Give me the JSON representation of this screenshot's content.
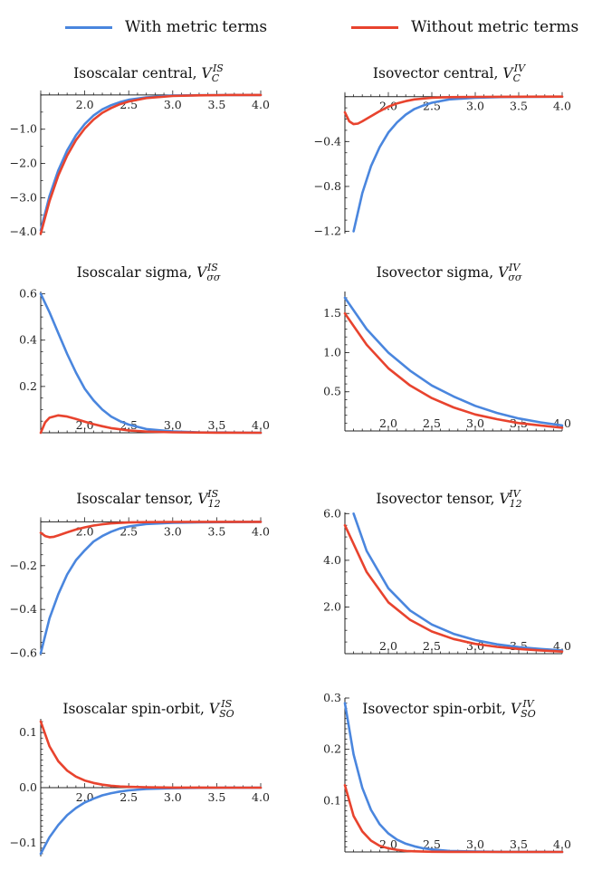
{
  "legend": {
    "with_label": "With metric terms",
    "without_label": "Without metric terms",
    "with_color": "#4a86de",
    "without_color": "#e8432e"
  },
  "chart_data": [
    {
      "type": "line",
      "title_text": "Isoscalar central, ",
      "symbol": "V",
      "sub": "C",
      "sup": "IS",
      "xlim": [
        1.5,
        4.0
      ],
      "ylim": [
        -4.1,
        0.05
      ],
      "xticks": [
        2.0,
        2.5,
        3.0,
        3.5,
        4.0
      ],
      "xtick_labels": [
        "2.0",
        "2.5",
        "3.0",
        "3.5",
        "4.0"
      ],
      "yticks": [
        -1.0,
        -2.0,
        -3.0,
        -4.0
      ],
      "ytick_labels": [
        "-1.0",
        "-2.0",
        "-3.0",
        "-4.0"
      ],
      "series": [
        {
          "name": "With metric terms",
          "x": [
            1.5,
            1.6,
            1.7,
            1.8,
            1.9,
            2.0,
            2.1,
            2.2,
            2.3,
            2.4,
            2.5,
            2.7,
            3.0,
            3.3,
            3.6,
            4.0
          ],
          "y": [
            -3.95,
            -2.95,
            -2.2,
            -1.62,
            -1.18,
            -0.85,
            -0.6,
            -0.42,
            -0.3,
            -0.21,
            -0.14,
            -0.07,
            -0.02,
            -0.008,
            -0.003,
            -0.001
          ]
        },
        {
          "name": "Without metric terms",
          "x": [
            1.5,
            1.6,
            1.7,
            1.8,
            1.9,
            2.0,
            2.1,
            2.2,
            2.3,
            2.4,
            2.5,
            2.7,
            3.0,
            3.3,
            3.6,
            4.0
          ],
          "y": [
            -4.05,
            -3.1,
            -2.35,
            -1.77,
            -1.32,
            -0.98,
            -0.72,
            -0.52,
            -0.38,
            -0.27,
            -0.19,
            -0.09,
            -0.03,
            -0.01,
            -0.004,
            -0.001
          ]
        }
      ]
    },
    {
      "type": "line",
      "title_text": "Isovector central, ",
      "symbol": "V",
      "sub": "C",
      "sup": "IV",
      "xlim": [
        1.5,
        4.0
      ],
      "ylim": [
        -1.22,
        0.03
      ],
      "xticks": [
        2.0,
        2.5,
        3.0,
        3.5,
        4.0
      ],
      "xtick_labels": [
        "2.0",
        "2.5",
        "3.0",
        "3.5",
        "4.0"
      ],
      "yticks": [
        -0.4,
        -0.8,
        -1.2
      ],
      "ytick_labels": [
        "-0.4",
        "-0.8",
        "-1.2"
      ],
      "series": [
        {
          "name": "With metric terms",
          "x": [
            1.6,
            1.7,
            1.8,
            1.9,
            2.0,
            2.1,
            2.2,
            2.3,
            2.4,
            2.5,
            2.7,
            3.0,
            3.3,
            3.6,
            4.0
          ],
          "y": [
            -1.2,
            -0.86,
            -0.62,
            -0.45,
            -0.32,
            -0.23,
            -0.16,
            -0.11,
            -0.08,
            -0.055,
            -0.025,
            -0.01,
            -0.004,
            -0.002,
            -0.001
          ]
        },
        {
          "name": "Without metric terms",
          "x": [
            1.5,
            1.55,
            1.6,
            1.65,
            1.7,
            1.8,
            1.9,
            2.0,
            2.1,
            2.2,
            2.3,
            2.5,
            2.7,
            3.0,
            3.5,
            4.0
          ],
          "y": [
            -0.14,
            -0.22,
            -0.245,
            -0.24,
            -0.22,
            -0.175,
            -0.13,
            -0.09,
            -0.06,
            -0.04,
            -0.025,
            -0.01,
            -0.005,
            -0.002,
            -0.0005,
            -0.0001
          ]
        }
      ]
    },
    {
      "type": "line",
      "title_text": "Isoscalar sigma, ",
      "symbol": "V",
      "sub": "σσ",
      "sup": "IS",
      "xlim": [
        1.5,
        4.0
      ],
      "ylim": [
        0.0,
        0.61
      ],
      "xticks": [
        2.0,
        2.5,
        3.0,
        3.5,
        4.0
      ],
      "xtick_labels": [
        "2.0",
        "2.5",
        "3.0",
        "3.5",
        "4.0"
      ],
      "yticks": [
        0.6,
        0.4,
        0.2
      ],
      "ytick_labels": [
        "0.6",
        "0.4",
        "0.2"
      ],
      "series": [
        {
          "name": "With metric terms",
          "x": [
            1.5,
            1.6,
            1.7,
            1.8,
            1.9,
            2.0,
            2.1,
            2.2,
            2.3,
            2.4,
            2.5,
            2.7,
            3.0,
            3.3,
            3.6,
            4.0
          ],
          "y": [
            0.6,
            0.52,
            0.43,
            0.34,
            0.26,
            0.19,
            0.14,
            0.1,
            0.07,
            0.05,
            0.035,
            0.016,
            0.006,
            0.002,
            0.001,
            0.0
          ]
        },
        {
          "name": "Without metric terms",
          "x": [
            1.5,
            1.55,
            1.6,
            1.7,
            1.8,
            1.9,
            2.0,
            2.1,
            2.2,
            2.3,
            2.5,
            2.7,
            3.0,
            3.5,
            4.0
          ],
          "y": [
            0.0,
            0.045,
            0.065,
            0.075,
            0.07,
            0.06,
            0.048,
            0.037,
            0.028,
            0.02,
            0.01,
            0.005,
            0.002,
            0.0005,
            0.0
          ]
        }
      ]
    },
    {
      "type": "line",
      "title_text": "Isovector sigma, ",
      "symbol": "V",
      "sub": "σσ",
      "sup": "IV",
      "xlim": [
        1.5,
        4.0
      ],
      "ylim": [
        0.0,
        1.78
      ],
      "xticks": [
        2.0,
        2.5,
        3.0,
        3.5,
        4.0
      ],
      "xtick_labels": [
        "2.0",
        "2.5",
        "3.0",
        "3.5",
        "4.0"
      ],
      "yticks": [
        1.5,
        1.0,
        0.5
      ],
      "ytick_labels": [
        "1.5",
        "1.0",
        "0.5"
      ],
      "series": [
        {
          "name": "With metric terms",
          "x": [
            1.5,
            1.75,
            2.0,
            2.25,
            2.5,
            2.75,
            3.0,
            3.25,
            3.5,
            3.75,
            4.0
          ],
          "y": [
            1.7,
            1.3,
            1.0,
            0.77,
            0.58,
            0.44,
            0.32,
            0.23,
            0.16,
            0.11,
            0.07
          ]
        },
        {
          "name": "Without metric terms",
          "x": [
            1.5,
            1.75,
            2.0,
            2.25,
            2.5,
            2.75,
            3.0,
            3.25,
            3.5,
            3.75,
            4.0
          ],
          "y": [
            1.5,
            1.1,
            0.8,
            0.58,
            0.42,
            0.3,
            0.21,
            0.15,
            0.1,
            0.07,
            0.04
          ]
        }
      ]
    },
    {
      "type": "line",
      "title_text": "Isoscalar tensor, ",
      "symbol": "V",
      "sub": "12",
      "sup": "IS",
      "xlim": [
        1.5,
        4.0
      ],
      "ylim": [
        -0.61,
        0.01
      ],
      "xticks": [
        2.0,
        2.5,
        3.0,
        3.5,
        4.0
      ],
      "xtick_labels": [
        "2.0",
        "2.5",
        "3.0",
        "3.5",
        "4.0"
      ],
      "yticks": [
        -0.2,
        -0.4,
        -0.6
      ],
      "ytick_labels": [
        "-0.2",
        "-0.4",
        "-0.6"
      ],
      "series": [
        {
          "name": "With metric terms",
          "x": [
            1.5,
            1.6,
            1.7,
            1.8,
            1.9,
            2.0,
            2.1,
            2.2,
            2.3,
            2.4,
            2.5,
            2.7,
            3.0,
            3.3,
            3.6,
            4.0
          ],
          "y": [
            -0.6,
            -0.44,
            -0.33,
            -0.24,
            -0.175,
            -0.13,
            -0.09,
            -0.065,
            -0.045,
            -0.03,
            -0.021,
            -0.01,
            -0.004,
            -0.002,
            -0.001,
            0.0
          ]
        },
        {
          "name": "Without metric terms",
          "x": [
            1.5,
            1.55,
            1.6,
            1.65,
            1.7,
            1.8,
            1.9,
            2.0,
            2.1,
            2.2,
            2.3,
            2.5,
            2.7,
            3.0,
            3.5,
            4.0
          ],
          "y": [
            -0.05,
            -0.065,
            -0.07,
            -0.068,
            -0.062,
            -0.048,
            -0.035,
            -0.025,
            -0.017,
            -0.011,
            -0.007,
            -0.003,
            -0.001,
            -0.0005,
            0.0,
            0.0
          ]
        }
      ]
    },
    {
      "type": "line",
      "title_text": "Isovector tensor, ",
      "symbol": "V",
      "sub": "12",
      "sup": "IV",
      "xlim": [
        1.5,
        4.0
      ],
      "ylim": [
        0.0,
        6.05
      ],
      "xticks": [
        2.0,
        2.5,
        3.0,
        3.5,
        4.0
      ],
      "xtick_labels": [
        "2.0",
        "2.5",
        "3.0",
        "3.5",
        "4.0"
      ],
      "yticks": [
        6.0,
        4.0,
        2.0
      ],
      "ytick_labels": [
        "6.0",
        "4.0",
        "2.0"
      ],
      "series": [
        {
          "name": "With metric terms",
          "x": [
            1.6,
            1.75,
            2.0,
            2.25,
            2.5,
            2.75,
            3.0,
            3.25,
            3.5,
            3.75,
            4.0
          ],
          "y": [
            6.0,
            4.4,
            2.8,
            1.85,
            1.25,
            0.85,
            0.58,
            0.4,
            0.28,
            0.2,
            0.14
          ]
        },
        {
          "name": "Without metric terms",
          "x": [
            1.5,
            1.75,
            2.0,
            2.25,
            2.5,
            2.75,
            3.0,
            3.25,
            3.5,
            3.75,
            4.0
          ],
          "y": [
            5.5,
            3.5,
            2.2,
            1.45,
            0.95,
            0.63,
            0.42,
            0.29,
            0.2,
            0.14,
            0.09
          ]
        }
      ]
    },
    {
      "type": "line",
      "title_text": "Isoscalar spin-orbit, ",
      "symbol": "V",
      "sub": "SO",
      "sup": "IS",
      "xlim": [
        1.5,
        4.0
      ],
      "ylim": [
        -0.125,
        0.125
      ],
      "xticks": [
        2.0,
        2.5,
        3.0,
        3.5,
        4.0
      ],
      "xtick_labels": [
        "2.0",
        "2.5",
        "3.0",
        "3.5",
        "4.0"
      ],
      "yticks": [
        0.1,
        0.0,
        -0.1
      ],
      "ytick_labels": [
        "0.1",
        "0.0",
        "-0.1"
      ],
      "series": [
        {
          "name": "With metric terms",
          "x": [
            1.5,
            1.6,
            1.7,
            1.8,
            1.9,
            2.0,
            2.1,
            2.2,
            2.3,
            2.4,
            2.5,
            2.7,
            3.0,
            3.3,
            3.6,
            4.0
          ],
          "y": [
            -0.12,
            -0.09,
            -0.068,
            -0.05,
            -0.037,
            -0.027,
            -0.02,
            -0.014,
            -0.01,
            -0.007,
            -0.005,
            -0.0025,
            -0.001,
            -0.0004,
            -0.0002,
            0.0
          ]
        },
        {
          "name": "Without metric terms",
          "x": [
            1.5,
            1.6,
            1.7,
            1.8,
            1.9,
            2.0,
            2.1,
            2.2,
            2.3,
            2.4,
            2.5,
            2.7,
            3.0,
            3.3,
            3.6,
            4.0
          ],
          "y": [
            0.12,
            0.075,
            0.048,
            0.031,
            0.02,
            0.013,
            0.0085,
            0.0055,
            0.0035,
            0.0022,
            0.0014,
            0.0006,
            0.0002,
            0.0001,
            0.0,
            0.0
          ]
        }
      ]
    },
    {
      "type": "line",
      "title_text": "Isovector spin-orbit, ",
      "symbol": "V",
      "sub": "SO",
      "sup": "IV",
      "xlim": [
        1.5,
        4.0
      ],
      "ylim": [
        0.0,
        0.3
      ],
      "xticks": [
        2.0,
        2.5,
        3.0,
        3.5,
        4.0
      ],
      "xtick_labels": [
        "2.0",
        "2.5",
        "3.0",
        "3.5",
        "4.0"
      ],
      "yticks": [
        0.3,
        0.2,
        0.1
      ],
      "ytick_labels": [
        "0.3",
        "0.2",
        "0.1"
      ],
      "series": [
        {
          "name": "With metric terms",
          "x": [
            1.5,
            1.6,
            1.7,
            1.8,
            1.9,
            2.0,
            2.1,
            2.2,
            2.3,
            2.4,
            2.5,
            2.7,
            3.0,
            3.3,
            3.6,
            4.0
          ],
          "y": [
            0.29,
            0.19,
            0.125,
            0.082,
            0.054,
            0.036,
            0.024,
            0.016,
            0.011,
            0.007,
            0.005,
            0.002,
            0.0007,
            0.0002,
            0.0001,
            0.0
          ]
        },
        {
          "name": "Without metric terms",
          "x": [
            1.5,
            1.6,
            1.7,
            1.8,
            1.9,
            2.0,
            2.1,
            2.2,
            2.3,
            2.4,
            2.5,
            2.7,
            3.0,
            3.3,
            3.6,
            4.0
          ],
          "y": [
            0.13,
            0.07,
            0.04,
            0.022,
            0.012,
            0.007,
            0.004,
            0.002,
            0.0012,
            0.0007,
            0.0004,
            0.0001,
            0.0,
            0.0,
            0.0,
            0.0
          ]
        }
      ]
    }
  ]
}
